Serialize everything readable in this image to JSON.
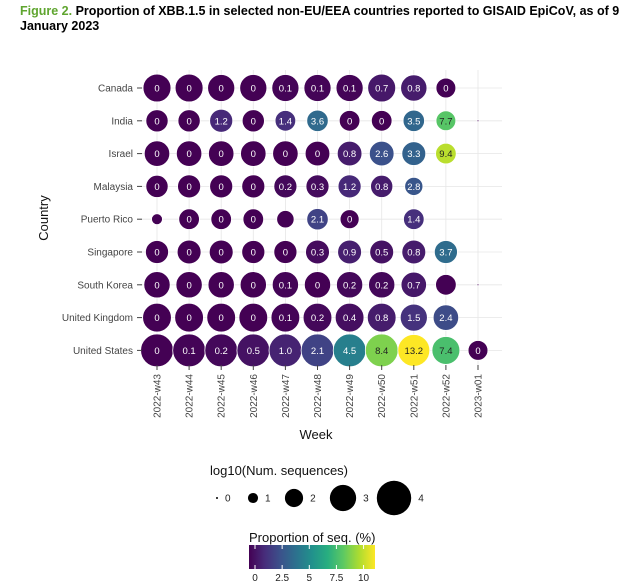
{
  "caption": {
    "lead": "Figure 2.",
    "text": "Proportion of XBB.1.5 in selected non-EU/EEA countries reported to GISAID EpiCoV, as of 9 January 2023"
  },
  "chart_data": {
    "type": "bubble",
    "xlabel": "Week",
    "ylabel": "Country",
    "weeks": [
      "2022-w43",
      "2022-w44",
      "2022-w45",
      "2022-w46",
      "2022-w47",
      "2022-w48",
      "2022-w49",
      "2022-w50",
      "2022-w51",
      "2022-w52",
      "2023-w01"
    ],
    "countries": [
      "Canada",
      "India",
      "Israel",
      "Malaysia",
      "Puerto Rico",
      "Singapore",
      "South Korea",
      "United Kingdom",
      "United States"
    ],
    "grid": true,
    "size_legend": {
      "title": "log10(Num. sequences)",
      "values": [
        0,
        1,
        2,
        3,
        4
      ]
    },
    "color_legend": {
      "title": "Proportion of seq. (%)",
      "min": 0,
      "max": 10.5,
      "ticks": [
        0,
        2.5,
        5,
        7.5,
        10
      ],
      "tick_labels": [
        "0",
        "2.5",
        "5",
        "7.5",
        "10"
      ]
    },
    "points": [
      {
        "country": "Canada",
        "week": "2022-w43",
        "proportion": 0,
        "logn": 3.2,
        "label": "0"
      },
      {
        "country": "Canada",
        "week": "2022-w44",
        "proportion": 0,
        "logn": 3.2,
        "label": "0"
      },
      {
        "country": "Canada",
        "week": "2022-w45",
        "proportion": 0,
        "logn": 3.1,
        "label": "0"
      },
      {
        "country": "Canada",
        "week": "2022-w46",
        "proportion": 0,
        "logn": 3.1,
        "label": "0"
      },
      {
        "country": "Canada",
        "week": "2022-w47",
        "proportion": 0.1,
        "logn": 3.1,
        "label": "0.1"
      },
      {
        "country": "Canada",
        "week": "2022-w48",
        "proportion": 0.1,
        "logn": 3.1,
        "label": "0.1"
      },
      {
        "country": "Canada",
        "week": "2022-w49",
        "proportion": 0.1,
        "logn": 3.1,
        "label": "0.1"
      },
      {
        "country": "Canada",
        "week": "2022-w50",
        "proportion": 0.7,
        "logn": 3.2,
        "label": "0.7"
      },
      {
        "country": "Canada",
        "week": "2022-w51",
        "proportion": 0.8,
        "logn": 3.0,
        "label": "0.8"
      },
      {
        "country": "Canada",
        "week": "2022-w52",
        "proportion": 0,
        "logn": 2.2,
        "label": "0"
      },
      {
        "country": "India",
        "week": "2022-w43",
        "proportion": 0,
        "logn": 2.5,
        "label": "0"
      },
      {
        "country": "India",
        "week": "2022-w44",
        "proportion": 0,
        "logn": 2.5,
        "label": "0"
      },
      {
        "country": "India",
        "week": "2022-w45",
        "proportion": 1.2,
        "logn": 2.6,
        "label": "1.2"
      },
      {
        "country": "India",
        "week": "2022-w46",
        "proportion": 0,
        "logn": 2.5,
        "label": "0"
      },
      {
        "country": "India",
        "week": "2022-w47",
        "proportion": 1.4,
        "logn": 2.3,
        "label": "1.4"
      },
      {
        "country": "India",
        "week": "2022-w48",
        "proportion": 3.6,
        "logn": 2.4,
        "label": "3.6"
      },
      {
        "country": "India",
        "week": "2022-w49",
        "proportion": 0,
        "logn": 2.3,
        "label": "0"
      },
      {
        "country": "India",
        "week": "2022-w50",
        "proportion": 0,
        "logn": 2.3,
        "label": "0"
      },
      {
        "country": "India",
        "week": "2022-w51",
        "proportion": 3.5,
        "logn": 2.4,
        "label": "3.5"
      },
      {
        "country": "India",
        "week": "2022-w52",
        "proportion": 7.7,
        "logn": 2.2,
        "label": "7.7"
      },
      {
        "country": "India",
        "week": "2023-w01",
        "proportion": 0,
        "logn": 0,
        "label": ""
      },
      {
        "country": "Israel",
        "week": "2022-w43",
        "proportion": 0,
        "logn": 2.9,
        "label": "0"
      },
      {
        "country": "Israel",
        "week": "2022-w44",
        "proportion": 0,
        "logn": 2.9,
        "label": "0"
      },
      {
        "country": "Israel",
        "week": "2022-w45",
        "proportion": 0,
        "logn": 2.9,
        "label": "0"
      },
      {
        "country": "Israel",
        "week": "2022-w46",
        "proportion": 0,
        "logn": 2.9,
        "label": "0"
      },
      {
        "country": "Israel",
        "week": "2022-w47",
        "proportion": 0,
        "logn": 2.9,
        "label": "0"
      },
      {
        "country": "Israel",
        "week": "2022-w48",
        "proportion": 0,
        "logn": 2.8,
        "label": "0"
      },
      {
        "country": "Israel",
        "week": "2022-w49",
        "proportion": 0.8,
        "logn": 2.8,
        "label": "0.8"
      },
      {
        "country": "Israel",
        "week": "2022-w50",
        "proportion": 2.6,
        "logn": 2.8,
        "label": "2.6"
      },
      {
        "country": "Israel",
        "week": "2022-w51",
        "proportion": 3.3,
        "logn": 2.7,
        "label": "3.3"
      },
      {
        "country": "Israel",
        "week": "2022-w52",
        "proportion": 9.4,
        "logn": 2.3,
        "label": "9.4"
      },
      {
        "country": "Malaysia",
        "week": "2022-w43",
        "proportion": 0,
        "logn": 2.5,
        "label": "0"
      },
      {
        "country": "Malaysia",
        "week": "2022-w44",
        "proportion": 0,
        "logn": 2.6,
        "label": "0"
      },
      {
        "country": "Malaysia",
        "week": "2022-w45",
        "proportion": 0,
        "logn": 2.6,
        "label": "0"
      },
      {
        "country": "Malaysia",
        "week": "2022-w46",
        "proportion": 0,
        "logn": 2.6,
        "label": "0"
      },
      {
        "country": "Malaysia",
        "week": "2022-w47",
        "proportion": 0.2,
        "logn": 2.6,
        "label": "0.2"
      },
      {
        "country": "Malaysia",
        "week": "2022-w48",
        "proportion": 0.3,
        "logn": 2.6,
        "label": "0.3"
      },
      {
        "country": "Malaysia",
        "week": "2022-w49",
        "proportion": 1.2,
        "logn": 2.6,
        "label": "1.2"
      },
      {
        "country": "Malaysia",
        "week": "2022-w50",
        "proportion": 0.8,
        "logn": 2.5,
        "label": "0.8"
      },
      {
        "country": "Malaysia",
        "week": "2022-w51",
        "proportion": 2.8,
        "logn": 2.0,
        "label": "2.8"
      },
      {
        "country": "Puerto Rico",
        "week": "2022-w43",
        "proportion": 0,
        "logn": 1.1,
        "label": ""
      },
      {
        "country": "Puerto Rico",
        "week": "2022-w44",
        "proportion": 0,
        "logn": 2.3,
        "label": "0"
      },
      {
        "country": "Puerto Rico",
        "week": "2022-w45",
        "proportion": 0,
        "logn": 2.3,
        "label": "0"
      },
      {
        "country": "Puerto Rico",
        "week": "2022-w46",
        "proportion": 0,
        "logn": 2.3,
        "label": "0"
      },
      {
        "country": "Puerto Rico",
        "week": "2022-w47",
        "proportion": 0,
        "logn": 1.9,
        "label": ""
      },
      {
        "country": "Puerto Rico",
        "week": "2022-w48",
        "proportion": 2.1,
        "logn": 2.4,
        "label": "2.1"
      },
      {
        "country": "Puerto Rico",
        "week": "2022-w49",
        "proportion": 0,
        "logn": 2.1,
        "label": "0"
      },
      {
        "country": "Puerto Rico",
        "week": "2022-w51",
        "proportion": 1.4,
        "logn": 2.3,
        "label": "1.4"
      },
      {
        "country": "Singapore",
        "week": "2022-w43",
        "proportion": 0,
        "logn": 2.6,
        "label": "0"
      },
      {
        "country": "Singapore",
        "week": "2022-w44",
        "proportion": 0,
        "logn": 2.7,
        "label": "0"
      },
      {
        "country": "Singapore",
        "week": "2022-w45",
        "proportion": 0,
        "logn": 2.7,
        "label": "0"
      },
      {
        "country": "Singapore",
        "week": "2022-w46",
        "proportion": 0,
        "logn": 2.6,
        "label": "0"
      },
      {
        "country": "Singapore",
        "week": "2022-w47",
        "proportion": 0,
        "logn": 2.6,
        "label": "0"
      },
      {
        "country": "Singapore",
        "week": "2022-w48",
        "proportion": 0.3,
        "logn": 2.7,
        "label": "0.3"
      },
      {
        "country": "Singapore",
        "week": "2022-w49",
        "proportion": 0.9,
        "logn": 2.7,
        "label": "0.9"
      },
      {
        "country": "Singapore",
        "week": "2022-w50",
        "proportion": 0.5,
        "logn": 2.7,
        "label": "0.5"
      },
      {
        "country": "Singapore",
        "week": "2022-w51",
        "proportion": 0.8,
        "logn": 2.7,
        "label": "0.8"
      },
      {
        "country": "Singapore",
        "week": "2022-w52",
        "proportion": 3.7,
        "logn": 2.6,
        "label": "3.7"
      },
      {
        "country": "South Korea",
        "week": "2022-w43",
        "proportion": 0,
        "logn": 3.0,
        "label": "0"
      },
      {
        "country": "South Korea",
        "week": "2022-w44",
        "proportion": 0,
        "logn": 3.0,
        "label": "0"
      },
      {
        "country": "South Korea",
        "week": "2022-w45",
        "proportion": 0,
        "logn": 3.0,
        "label": "0"
      },
      {
        "country": "South Korea",
        "week": "2022-w46",
        "proportion": 0,
        "logn": 3.0,
        "label": "0"
      },
      {
        "country": "South Korea",
        "week": "2022-w47",
        "proportion": 0.1,
        "logn": 3.0,
        "label": "0.1"
      },
      {
        "country": "South Korea",
        "week": "2022-w48",
        "proportion": 0,
        "logn": 3.0,
        "label": "0"
      },
      {
        "country": "South Korea",
        "week": "2022-w49",
        "proportion": 0.2,
        "logn": 3.0,
        "label": "0.2"
      },
      {
        "country": "South Korea",
        "week": "2022-w50",
        "proportion": 0.2,
        "logn": 3.0,
        "label": "0.2"
      },
      {
        "country": "South Korea",
        "week": "2022-w51",
        "proportion": 0.7,
        "logn": 2.9,
        "label": "0.7"
      },
      {
        "country": "South Korea",
        "week": "2022-w52",
        "proportion": 0,
        "logn": 2.3,
        "label": ""
      },
      {
        "country": "South Korea",
        "week": "2023-w01",
        "proportion": 0,
        "logn": 0,
        "label": ""
      },
      {
        "country": "United Kingdom",
        "week": "2022-w43",
        "proportion": 0,
        "logn": 3.3,
        "label": "0"
      },
      {
        "country": "United Kingdom",
        "week": "2022-w44",
        "proportion": 0,
        "logn": 3.3,
        "label": "0"
      },
      {
        "country": "United Kingdom",
        "week": "2022-w45",
        "proportion": 0,
        "logn": 3.3,
        "label": "0"
      },
      {
        "country": "United Kingdom",
        "week": "2022-w46",
        "proportion": 0,
        "logn": 3.3,
        "label": "0"
      },
      {
        "country": "United Kingdom",
        "week": "2022-w47",
        "proportion": 0.1,
        "logn": 3.3,
        "label": "0.1"
      },
      {
        "country": "United Kingdom",
        "week": "2022-w48",
        "proportion": 0.2,
        "logn": 3.3,
        "label": "0.2"
      },
      {
        "country": "United Kingdom",
        "week": "2022-w49",
        "proportion": 0.4,
        "logn": 3.3,
        "label": "0.4"
      },
      {
        "country": "United Kingdom",
        "week": "2022-w50",
        "proportion": 0.8,
        "logn": 3.3,
        "label": "0.8"
      },
      {
        "country": "United Kingdom",
        "week": "2022-w51",
        "proportion": 1.5,
        "logn": 3.1,
        "label": "1.5"
      },
      {
        "country": "United Kingdom",
        "week": "2022-w52",
        "proportion": 2.4,
        "logn": 2.9,
        "label": "2.4"
      },
      {
        "country": "United States",
        "week": "2022-w43",
        "proportion": 0,
        "logn": 3.8,
        "label": "0"
      },
      {
        "country": "United States",
        "week": "2022-w44",
        "proportion": 0.1,
        "logn": 3.8,
        "label": "0.1"
      },
      {
        "country": "United States",
        "week": "2022-w45",
        "proportion": 0.2,
        "logn": 3.8,
        "label": "0.2"
      },
      {
        "country": "United States",
        "week": "2022-w46",
        "proportion": 0.5,
        "logn": 3.8,
        "label": "0.5"
      },
      {
        "country": "United States",
        "week": "2022-w47",
        "proportion": 1.0,
        "logn": 3.8,
        "label": "1.0"
      },
      {
        "country": "United States",
        "week": "2022-w48",
        "proportion": 2.1,
        "logn": 3.8,
        "label": "2.1"
      },
      {
        "country": "United States",
        "week": "2022-w49",
        "proportion": 4.5,
        "logn": 3.8,
        "label": "4.5"
      },
      {
        "country": "United States",
        "week": "2022-w50",
        "proportion": 8.4,
        "logn": 3.8,
        "label": "8.4"
      },
      {
        "country": "United States",
        "week": "2022-w51",
        "proportion": 13.2,
        "logn": 3.7,
        "label": "13.2"
      },
      {
        "country": "United States",
        "week": "2022-w52",
        "proportion": 7.4,
        "logn": 3.2,
        "label": "7.4"
      },
      {
        "country": "United States",
        "week": "2023-w01",
        "proportion": 0,
        "logn": 2.2,
        "label": "0"
      }
    ]
  }
}
